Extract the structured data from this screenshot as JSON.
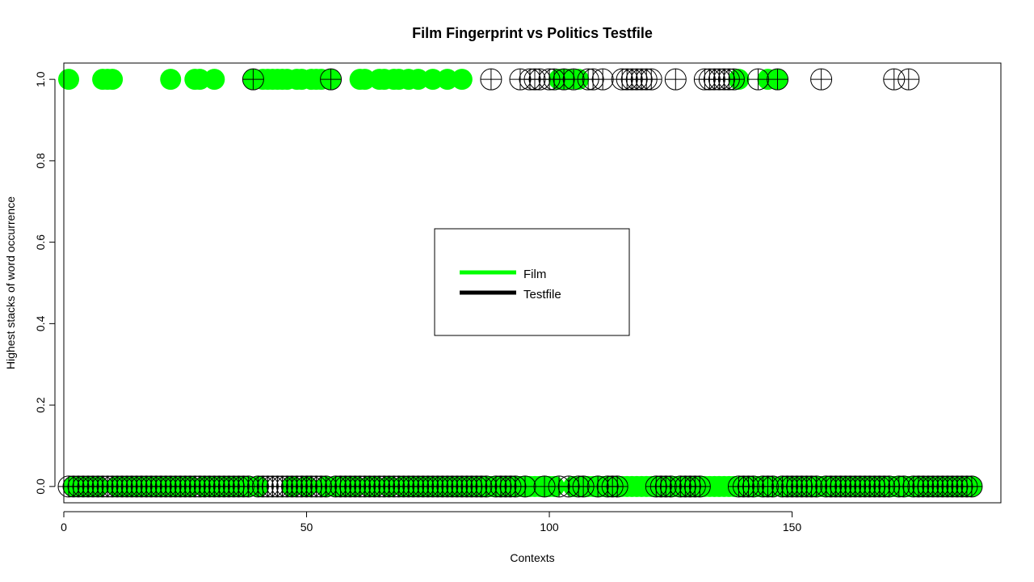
{
  "chart_data": {
    "type": "scatter",
    "title": "Film Fingerprint vs Politics Testfile",
    "xlabel": "Contexts",
    "ylabel": "Highest stacks of word occurrence",
    "xlim": [
      0,
      193
    ],
    "ylim": [
      -0.04,
      1.04
    ],
    "xticks": [
      0,
      50,
      100,
      150
    ],
    "yticks": [
      0.0,
      0.2,
      0.4,
      0.6,
      0.8,
      1.0
    ],
    "grid": false,
    "legend_position": "center",
    "series": [
      {
        "name": "Film",
        "color": "#00ff00",
        "marker": "filled-circle",
        "ones": [
          1,
          8,
          9,
          10,
          22,
          27,
          28,
          31,
          39,
          41,
          42,
          43,
          44,
          45,
          46,
          48,
          49,
          51,
          52,
          53,
          55,
          61,
          62,
          65,
          66,
          68,
          69,
          71,
          73,
          76,
          79,
          82,
          102,
          103,
          104,
          106,
          139,
          145,
          147
        ]
      },
      {
        "name": "Testfile",
        "color": "#000000",
        "marker": "circle-plus",
        "ones": [
          39,
          55,
          88,
          94,
          96,
          97,
          98,
          100,
          101,
          103,
          105,
          108,
          109,
          111,
          115,
          116,
          117,
          118,
          119,
          120,
          121,
          126,
          132,
          133,
          134,
          135,
          136,
          137,
          138,
          143,
          147,
          156,
          171,
          174
        ]
      }
    ],
    "x_count": 187,
    "zero_value": 0.0
  }
}
